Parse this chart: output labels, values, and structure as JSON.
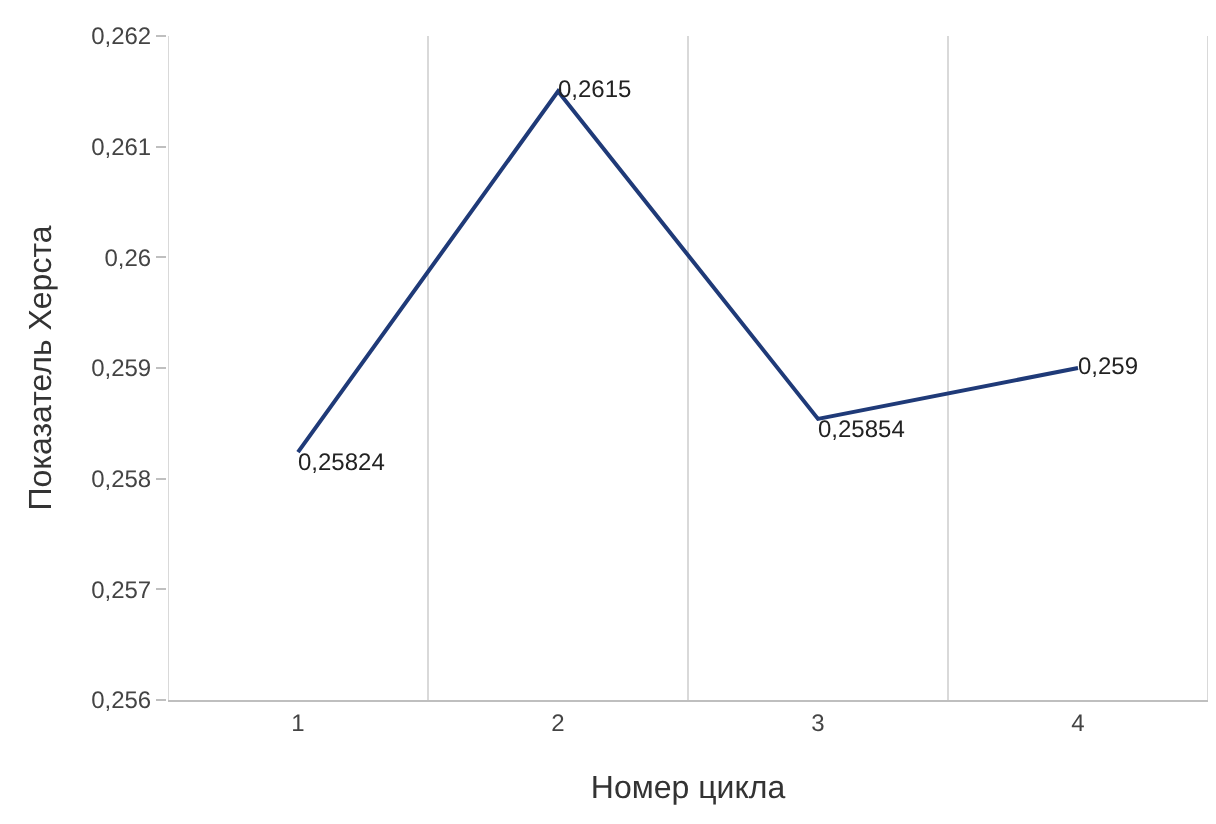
{
  "chart_data": {
    "type": "line",
    "xlabel": "Номер цикла",
    "ylabel": "Показатель Херста",
    "categories": [
      "1",
      "2",
      "3",
      "4"
    ],
    "series": [
      {
        "color": "#1f3a78",
        "values": [
          0.25824,
          0.2615,
          0.25854,
          0.259
        ],
        "value_labels": [
          "0,25824",
          "0,2615",
          "0,25854",
          "0,259"
        ]
      }
    ],
    "ylim": [
      0.256,
      0.262
    ],
    "yticks": [
      {
        "value": 0.256,
        "label": "0,256"
      },
      {
        "value": 0.257,
        "label": "0,257"
      },
      {
        "value": 0.258,
        "label": "0,258"
      },
      {
        "value": 0.259,
        "label": "0,259"
      },
      {
        "value": 0.26,
        "label": "0,26"
      },
      {
        "value": 0.261,
        "label": "0,261"
      },
      {
        "value": 0.262,
        "label": "0,262"
      }
    ],
    "grid": "x",
    "marker": "none",
    "line_style": "solid"
  }
}
